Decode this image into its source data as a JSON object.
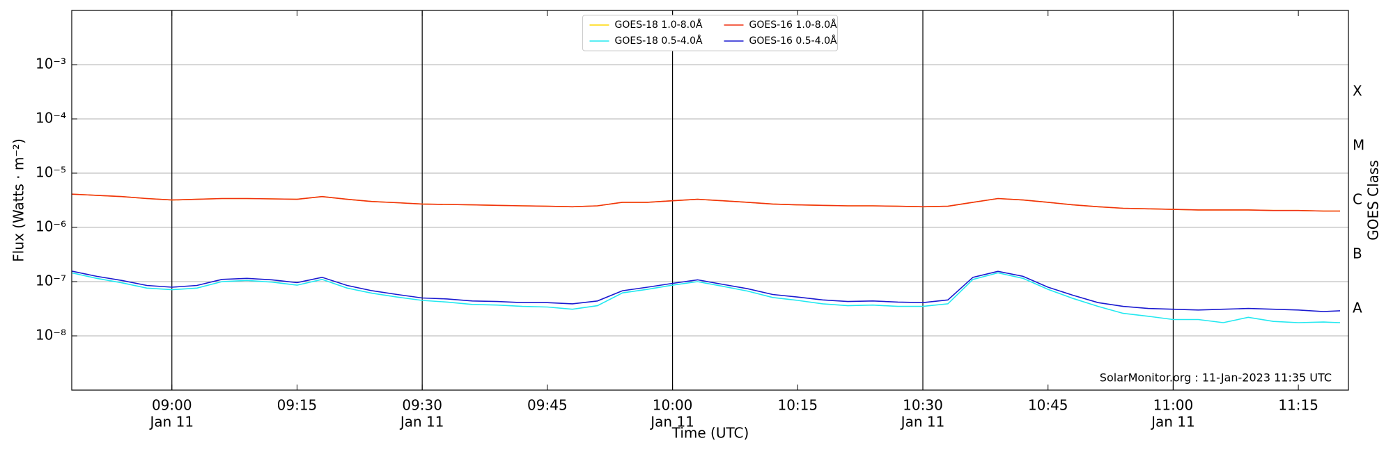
{
  "chart_data": {
    "type": "line",
    "xlabel": "Time (UTC)",
    "ylabel": "Flux (Watts · m⁻²)",
    "y2label": "GOES Class",
    "annotation": "SolarMonitor.org : 11-Jan-2023 11:35 UTC",
    "log_y": true,
    "grid": true,
    "legend": "upper center",
    "xlim": [
      "08:48",
      "11:21"
    ],
    "ylim": [
      1e-09,
      0.01
    ],
    "y2lim": [
      1e-09,
      0.01
    ],
    "xticks": [
      {
        "value": "09:00",
        "label": [
          "09:00",
          "Jan 11"
        ]
      },
      {
        "value": "09:15",
        "label": [
          "09:15"
        ]
      },
      {
        "value": "09:30",
        "label": [
          "09:30",
          "Jan 11"
        ]
      },
      {
        "value": "09:45",
        "label": [
          "09:45"
        ]
      },
      {
        "value": "10:00",
        "label": [
          "10:00",
          "Jan 11"
        ]
      },
      {
        "value": "10:15",
        "label": [
          "10:15"
        ]
      },
      {
        "value": "10:30",
        "label": [
          "10:30",
          "Jan 11"
        ]
      },
      {
        "value": "10:45",
        "label": [
          "10:45"
        ]
      },
      {
        "value": "11:00",
        "label": [
          "11:00",
          "Jan 11"
        ]
      },
      {
        "value": "11:15",
        "label": [
          "11:15"
        ]
      }
    ],
    "yticks": [
      {
        "value": 1e-08,
        "label": "10⁻⁸"
      },
      {
        "value": 1e-07,
        "label": "10⁻⁷"
      },
      {
        "value": 1e-06,
        "label": "10⁻⁶"
      },
      {
        "value": 1e-05,
        "label": "10⁻⁵"
      },
      {
        "value": 0.0001,
        "label": "10⁻⁴"
      },
      {
        "value": 0.001,
        "label": "10⁻³"
      }
    ],
    "y2ticks": [
      {
        "value": 3.16e-08,
        "label": "A"
      },
      {
        "value": 3.16e-07,
        "label": "B"
      },
      {
        "value": 3.16e-06,
        "label": "C"
      },
      {
        "value": 3.16e-05,
        "label": "M"
      },
      {
        "value": 0.000316,
        "label": "X"
      }
    ],
    "x": [
      "08:48",
      "08:51",
      "08:54",
      "08:57",
      "09:00",
      "09:03",
      "09:06",
      "09:09",
      "09:12",
      "09:15",
      "09:18",
      "09:21",
      "09:24",
      "09:27",
      "09:30",
      "09:33",
      "09:36",
      "09:39",
      "09:42",
      "09:45",
      "09:48",
      "09:51",
      "09:54",
      "09:57",
      "10:00",
      "10:03",
      "10:06",
      "10:09",
      "10:12",
      "10:15",
      "10:18",
      "10:21",
      "10:24",
      "10:27",
      "10:30",
      "10:33",
      "10:36",
      "10:39",
      "10:42",
      "10:45",
      "10:48",
      "10:51",
      "10:54",
      "10:57",
      "11:00",
      "11:03",
      "11:06",
      "11:09",
      "11:12",
      "11:15",
      "11:18",
      "11:20"
    ],
    "series": [
      {
        "name": "GOES-18 1.0-8.0Å",
        "color": "#ffd700",
        "values": [
          4.1e-06,
          3.9e-06,
          3.7e-06,
          3.4e-06,
          3.2e-06,
          3.3e-06,
          3.4e-06,
          3.4e-06,
          3.35e-06,
          3.3e-06,
          3.7e-06,
          3.3e-06,
          3e-06,
          2.85e-06,
          2.7e-06,
          2.65e-06,
          2.6e-06,
          2.55e-06,
          2.5e-06,
          2.45e-06,
          2.4e-06,
          2.5e-06,
          2.9e-06,
          2.9e-06,
          3.1e-06,
          3.3e-06,
          3.1e-06,
          2.9e-06,
          2.7e-06,
          2.6e-06,
          2.55e-06,
          2.5e-06,
          2.5e-06,
          2.45e-06,
          2.4e-06,
          2.45e-06,
          2.9e-06,
          3.4e-06,
          3.2e-06,
          2.9e-06,
          2.6e-06,
          2.4e-06,
          2.25e-06,
          2.2e-06,
          2.15e-06,
          2.1e-06,
          2.1e-06,
          2.1e-06,
          2.05e-06,
          2.05e-06,
          2e-06,
          2e-06
        ]
      },
      {
        "name": "GOES-18 0.5-4.0Å",
        "color": "#22e8f0",
        "values": [
          1.45e-07,
          1.15e-07,
          9.5e-08,
          7.6e-08,
          7.1e-08,
          7.6e-08,
          1e-07,
          1.05e-07,
          9.8e-08,
          8.6e-08,
          1.1e-07,
          7.6e-08,
          6.1e-08,
          5.2e-08,
          4.5e-08,
          4.2e-08,
          3.8e-08,
          3.7e-08,
          3.5e-08,
          3.4e-08,
          3.1e-08,
          3.6e-08,
          6.2e-08,
          7.2e-08,
          8.6e-08,
          1e-07,
          8.2e-08,
          6.7e-08,
          5.1e-08,
          4.5e-08,
          3.9e-08,
          3.6e-08,
          3.7e-08,
          3.5e-08,
          3.5e-08,
          3.9e-08,
          1.1e-07,
          1.45e-07,
          1.15e-07,
          7.2e-08,
          4.9e-08,
          3.5e-08,
          2.6e-08,
          2.3e-08,
          2e-08,
          2e-08,
          1.75e-08,
          2.2e-08,
          1.85e-08,
          1.75e-08,
          1.8e-08,
          1.75e-08
        ]
      },
      {
        "name": "GOES-16 1.0-8.0Å",
        "color": "#f03010",
        "values": [
          4.1e-06,
          3.9e-06,
          3.7e-06,
          3.4e-06,
          3.2e-06,
          3.3e-06,
          3.4e-06,
          3.4e-06,
          3.35e-06,
          3.3e-06,
          3.7e-06,
          3.3e-06,
          3e-06,
          2.85e-06,
          2.7e-06,
          2.65e-06,
          2.6e-06,
          2.55e-06,
          2.5e-06,
          2.45e-06,
          2.4e-06,
          2.5e-06,
          2.9e-06,
          2.9e-06,
          3.1e-06,
          3.3e-06,
          3.1e-06,
          2.9e-06,
          2.7e-06,
          2.6e-06,
          2.55e-06,
          2.5e-06,
          2.5e-06,
          2.45e-06,
          2.4e-06,
          2.45e-06,
          2.9e-06,
          3.4e-06,
          3.2e-06,
          2.9e-06,
          2.6e-06,
          2.4e-06,
          2.25e-06,
          2.2e-06,
          2.15e-06,
          2.1e-06,
          2.1e-06,
          2.1e-06,
          2.05e-06,
          2.05e-06,
          2e-06,
          2e-06
        ]
      },
      {
        "name": "GOES-16 0.5-4.0Å",
        "color": "#1a1ad0",
        "values": [
          1.56e-07,
          1.25e-07,
          1.05e-07,
          8.5e-08,
          7.9e-08,
          8.5e-08,
          1.1e-07,
          1.15e-07,
          1.08e-07,
          9.6e-08,
          1.2e-07,
          8.5e-08,
          6.8e-08,
          5.8e-08,
          5e-08,
          4.8e-08,
          4.4e-08,
          4.3e-08,
          4.1e-08,
          4.1e-08,
          3.9e-08,
          4.4e-08,
          6.8e-08,
          7.9e-08,
          9.3e-08,
          1.08e-07,
          8.9e-08,
          7.4e-08,
          5.8e-08,
          5.2e-08,
          4.6e-08,
          4.3e-08,
          4.4e-08,
          4.2e-08,
          4.1e-08,
          4.6e-08,
          1.2e-07,
          1.55e-07,
          1.25e-07,
          7.9e-08,
          5.6e-08,
          4.1e-08,
          3.5e-08,
          3.2e-08,
          3.1e-08,
          3e-08,
          3.1e-08,
          3.2e-08,
          3.1e-08,
          3e-08,
          2.8e-08,
          2.9e-08
        ]
      }
    ]
  }
}
